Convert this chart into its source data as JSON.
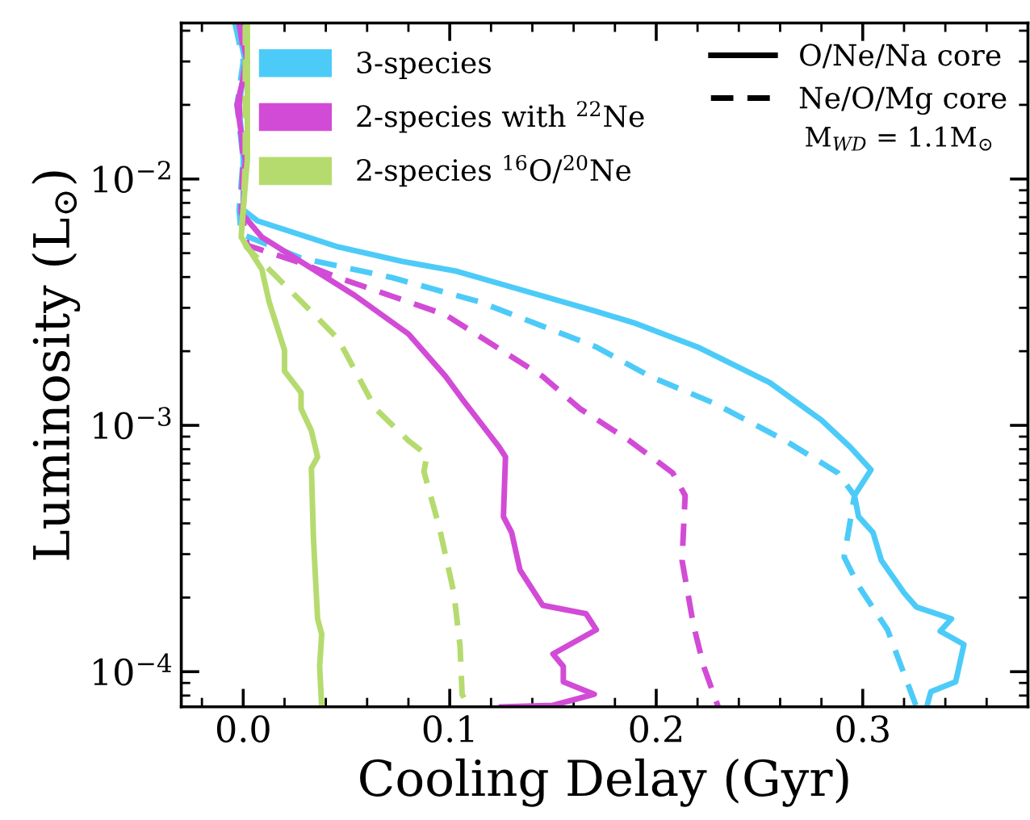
{
  "chart_data": {
    "type": "line",
    "xlabel": "Cooling Delay (Gyr)",
    "ylabel": "Luminosity (L$_{⊙}$)",
    "log": "y",
    "xlim": [
      -0.03,
      0.38
    ],
    "ylim": [
      7.2e-05,
      0.043
    ],
    "xticks": [
      {
        "value": 0,
        "label": "0.0"
      },
      0.1,
      0.2,
      0.3
    ],
    "yticks": [
      {
        "value": 0.0001,
        "label": "10$^{−4}$"
      },
      {
        "value": 0.001,
        "label": "10$^{−3}$"
      },
      {
        "value": 0.01,
        "label": "10$^{−2}$"
      }
    ],
    "grid": false,
    "legend": "top",
    "marker": "none",
    "series": [
      {
        "name": "3-species",
        "color": "#4dcbf8",
        "line_style": "solid",
        "x": [
          -0.003,
          0.001,
          -0.002,
          0.0,
          0.0,
          0.007,
          0.046,
          0.077,
          0.103,
          0.13,
          0.171,
          0.189,
          0.22,
          0.255,
          0.28,
          0.294,
          0.304,
          0.296,
          0.298,
          0.305,
          0.309,
          0.32,
          0.326,
          0.343,
          0.3375,
          0.349,
          0.345,
          0.333,
          0.331
        ],
        "values": [
          0.043,
          0.03,
          0.02,
          0.012,
          0.0075,
          0.00676,
          0.0053,
          0.00463,
          0.00423,
          0.00364,
          0.0029,
          0.00261,
          0.00208,
          0.00149,
          0.00105,
          0.000815,
          0.00066,
          0.000519,
          0.000426,
          0.000367,
          0.000283,
          0.000209,
          0.000183,
          0.000164,
          0.000146,
          0.000129,
          9.1e-05,
          8.3e-05,
          7.2e-05
        ]
      },
      {
        "color": "#4dcbf8",
        "line_style": "dashed",
        "x": [
          -0.004,
          0.0,
          -0.003,
          0.0,
          -0.002,
          -0.001,
          0.028,
          0.072,
          0.114,
          0.171,
          0.197,
          0.228,
          0.2625,
          0.288,
          0.296,
          0.291,
          0.298,
          0.312,
          0.32,
          0.326
        ],
        "values": [
          0.043,
          0.03,
          0.02,
          0.012,
          0.0075,
          0.00598,
          0.00478,
          0.00398,
          0.00318,
          0.00208,
          0.00158,
          0.00123,
          0.000867,
          0.000641,
          0.000519,
          0.000292,
          0.000223,
          0.000148,
          9.8e-05,
          7.2e-05
        ]
      },
      {
        "name": "2-species with $^{22}$Ne",
        "color": "#d24bd6",
        "line_style": "solid",
        "x": [
          -0.002,
          0.002,
          -0.003,
          0.001,
          0.0,
          -0.001,
          0.009,
          0.054,
          0.08,
          0.098,
          0.106,
          0.124,
          0.127,
          0.126,
          0.13,
          0.134,
          0.145,
          0.166,
          0.171,
          0.15,
          0.155,
          0.155,
          0.17,
          0.15,
          0.125
        ],
        "values": [
          0.043,
          0.03,
          0.02,
          0.012,
          0.0075,
          0.0073,
          0.00581,
          0.00337,
          0.00235,
          0.00158,
          0.00128,
          0.000815,
          0.000744,
          0.000426,
          0.000367,
          0.000259,
          0.000186,
          0.000172,
          0.000148,
          0.000118,
          0.000105,
          9.1e-05,
          8.1e-05,
          7.3e-05,
          7.2e-05
        ]
      },
      {
        "color": "#d24bd6",
        "line_style": "dashed",
        "x": [
          -0.002,
          0.001,
          -0.002,
          0.0,
          -0.001,
          0.002,
          0.028,
          0.046,
          0.098,
          0.145,
          0.163,
          0.187,
          0.208,
          0.214,
          0.2125,
          0.218,
          0.223,
          0.23
        ],
        "values": [
          0.043,
          0.03,
          0.02,
          0.012,
          0.0075,
          0.00538,
          0.00456,
          0.00398,
          0.00281,
          0.00158,
          0.00117,
          0.000867,
          0.000641,
          0.000519,
          0.000283,
          0.000155,
          0.000105,
          7.2e-05
        ]
      },
      {
        "name": "2-species $^{16}$O/$^{20}$Ne",
        "color": "#b5db6e",
        "line_style": "solid",
        "x": [
          0.002,
          0.002,
          0.002,
          0.002,
          0.0,
          -0.001,
          0.009,
          0.0125,
          0.02,
          0.02,
          0.028,
          0.028,
          0.033,
          0.036,
          0.033,
          0.034,
          0.036,
          0.038,
          0.037,
          0.038
        ],
        "values": [
          0.043,
          0.03,
          0.02,
          0.012,
          0.0075,
          0.00581,
          0.0043,
          0.00318,
          0.00202,
          0.00166,
          0.00136,
          0.00117,
          0.00095,
          0.000744,
          0.00067,
          0.00035,
          0.000164,
          0.000142,
          0.000105,
          7.2e-05
        ]
      },
      {
        "color": "#b5db6e",
        "line_style": "dashed",
        "x": [
          0.001,
          0.001,
          0.001,
          0.001,
          0.0,
          -0.001,
          0.0015,
          0.015,
          0.036,
          0.046,
          0.064,
          0.08,
          0.089,
          0.0875,
          0.095,
          0.102,
          0.105,
          0.106,
          0.109
        ],
        "values": [
          0.043,
          0.03,
          0.02,
          0.012,
          0.0075,
          0.00598,
          0.0053,
          0.0041,
          0.00273,
          0.00224,
          0.00117,
          0.000867,
          0.000757,
          0.00065,
          0.000384,
          0.000209,
          0.000127,
          8.1e-05,
          7.2e-05
        ]
      }
    ],
    "annotations": [
      "O/Ne/Na core",
      "Ne/O/Mg core",
      "M$_{WD}$ = 1.1M$_{⊙}$"
    ]
  }
}
